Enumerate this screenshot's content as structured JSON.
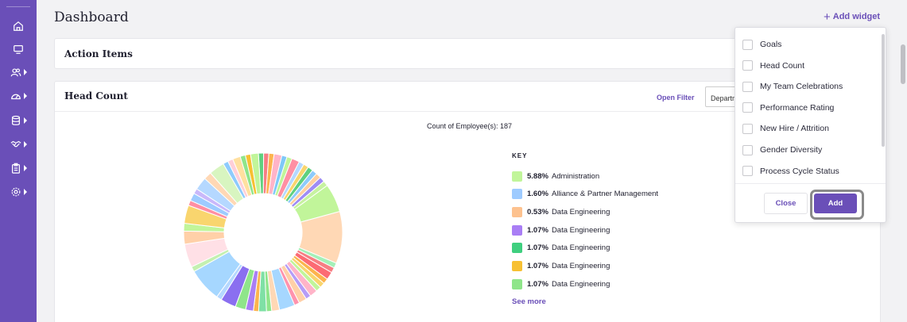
{
  "sidebar": {
    "items": [
      {
        "icon": "home-icon",
        "caret": false
      },
      {
        "icon": "monitor-icon",
        "caret": false
      },
      {
        "icon": "users-icon",
        "caret": true
      },
      {
        "icon": "dashboard-gauge-icon",
        "caret": true
      },
      {
        "icon": "database-icon",
        "caret": true
      },
      {
        "icon": "handshake-icon",
        "caret": true
      },
      {
        "icon": "clipboard-icon",
        "caret": true
      },
      {
        "icon": "settings-icon",
        "caret": true
      }
    ]
  },
  "header": {
    "title": "Dashboard",
    "add_widget_label": "Add widget",
    "add_widget_icon": "plus-icon"
  },
  "action_items": {
    "title": "Action Items"
  },
  "head_count": {
    "title": "Head Count",
    "open_filter_label": "Open Filter",
    "filter_value": "Department",
    "count_label": "Count of Employee(s): 187",
    "key_title": "KEY",
    "see_more_label": "See more"
  },
  "chart_data": {
    "type": "pie",
    "title": "Count of Employee(s): 187",
    "donut": true,
    "legend": [
      {
        "percent": "5.88%",
        "label": "Administration",
        "color": "#c1f59a"
      },
      {
        "percent": "1.60%",
        "label": "Alliance & Partner Management",
        "color": "#9ecbff"
      },
      {
        "percent": "0.53%",
        "label": "Data Engineering",
        "color": "#fdc28f"
      },
      {
        "percent": "1.07%",
        "label": "Data Engineering",
        "color": "#a97ef5"
      },
      {
        "percent": "1.07%",
        "label": "Data Engineering",
        "color": "#3fcf7f"
      },
      {
        "percent": "1.07%",
        "label": "Data Engineering",
        "color": "#f7c033"
      },
      {
        "percent": "1.07%",
        "label": "Data Engineering",
        "color": "#8fe58a"
      }
    ],
    "slices": [
      {
        "value": 1.07,
        "color": "#5fd07f"
      },
      {
        "value": 1.07,
        "color": "#f77e84"
      },
      {
        "value": 1.07,
        "color": "#fcb44e"
      },
      {
        "value": 1.6,
        "color": "#ffb4c8"
      },
      {
        "value": 1.07,
        "color": "#7fc8f8"
      },
      {
        "value": 1.07,
        "color": "#c1f59a"
      },
      {
        "value": 1.6,
        "color": "#ff8fa3"
      },
      {
        "value": 1.07,
        "color": "#b5d8ff"
      },
      {
        "value": 1.07,
        "color": "#f9d56e"
      },
      {
        "value": 1.07,
        "color": "#5fd07f"
      },
      {
        "value": 1.07,
        "color": "#8ecbfc"
      },
      {
        "value": 1.07,
        "color": "#ffcf9f"
      },
      {
        "value": 1.07,
        "color": "#9f8cf5"
      },
      {
        "value": 1.07,
        "color": "#c7f2a0"
      },
      {
        "value": 5.88,
        "color": "#c1f59a"
      },
      {
        "value": 10.7,
        "color": "#ffd8b5"
      },
      {
        "value": 1.07,
        "color": "#a4f0b8"
      },
      {
        "value": 1.07,
        "color": "#f77e84"
      },
      {
        "value": 1.6,
        "color": "#fc6b74"
      },
      {
        "value": 1.07,
        "color": "#fcb44e"
      },
      {
        "value": 1.07,
        "color": "#f9d56e"
      },
      {
        "value": 1.07,
        "color": "#c1f59a"
      },
      {
        "value": 1.6,
        "color": "#ffb4c8"
      },
      {
        "value": 1.07,
        "color": "#b59cf7"
      },
      {
        "value": 1.6,
        "color": "#ffd0a8"
      },
      {
        "value": 1.07,
        "color": "#ff93ae"
      },
      {
        "value": 3.2,
        "color": "#a6d7ff"
      },
      {
        "value": 1.6,
        "color": "#ffd8b5"
      },
      {
        "value": 1.07,
        "color": "#8fe58a"
      },
      {
        "value": 1.6,
        "color": "#7fe0a5"
      },
      {
        "value": 1.07,
        "color": "#fcb44e"
      },
      {
        "value": 1.6,
        "color": "#a97ef5"
      },
      {
        "value": 2.14,
        "color": "#8fe58a"
      },
      {
        "value": 3.2,
        "color": "#8a6ff0"
      },
      {
        "value": 1.07,
        "color": "#b5d8ff"
      },
      {
        "value": 6.95,
        "color": "#a6d7ff"
      },
      {
        "value": 1.07,
        "color": "#c4f0b0"
      },
      {
        "value": 4.81,
        "color": "#ffe0e6"
      },
      {
        "value": 2.67,
        "color": "#ffd0a8"
      },
      {
        "value": 1.6,
        "color": "#c1f59a"
      },
      {
        "value": 3.74,
        "color": "#f9d56e"
      },
      {
        "value": 1.07,
        "color": "#ff8fa3"
      },
      {
        "value": 1.6,
        "color": "#9ecbff"
      },
      {
        "value": 1.07,
        "color": "#c9b8fa"
      },
      {
        "value": 2.67,
        "color": "#b5d8ff"
      },
      {
        "value": 1.6,
        "color": "#ffd8b5"
      },
      {
        "value": 3.2,
        "color": "#d8f5c0"
      },
      {
        "value": 1.07,
        "color": "#8ecbfc"
      },
      {
        "value": 1.07,
        "color": "#ffcfd8"
      },
      {
        "value": 1.6,
        "color": "#ffe0a0"
      },
      {
        "value": 1.07,
        "color": "#8fe58a"
      },
      {
        "value": 1.07,
        "color": "#f7c033"
      },
      {
        "value": 1.6,
        "color": "#c1f59a"
      }
    ]
  },
  "widget_dropdown": {
    "options": [
      "Goals",
      "Head Count",
      "My Team Celebrations",
      "Performance Rating",
      "New Hire / Attrition",
      "Gender Diversity",
      "Process Cycle Status"
    ],
    "close_label": "Close",
    "add_label": "Add"
  }
}
